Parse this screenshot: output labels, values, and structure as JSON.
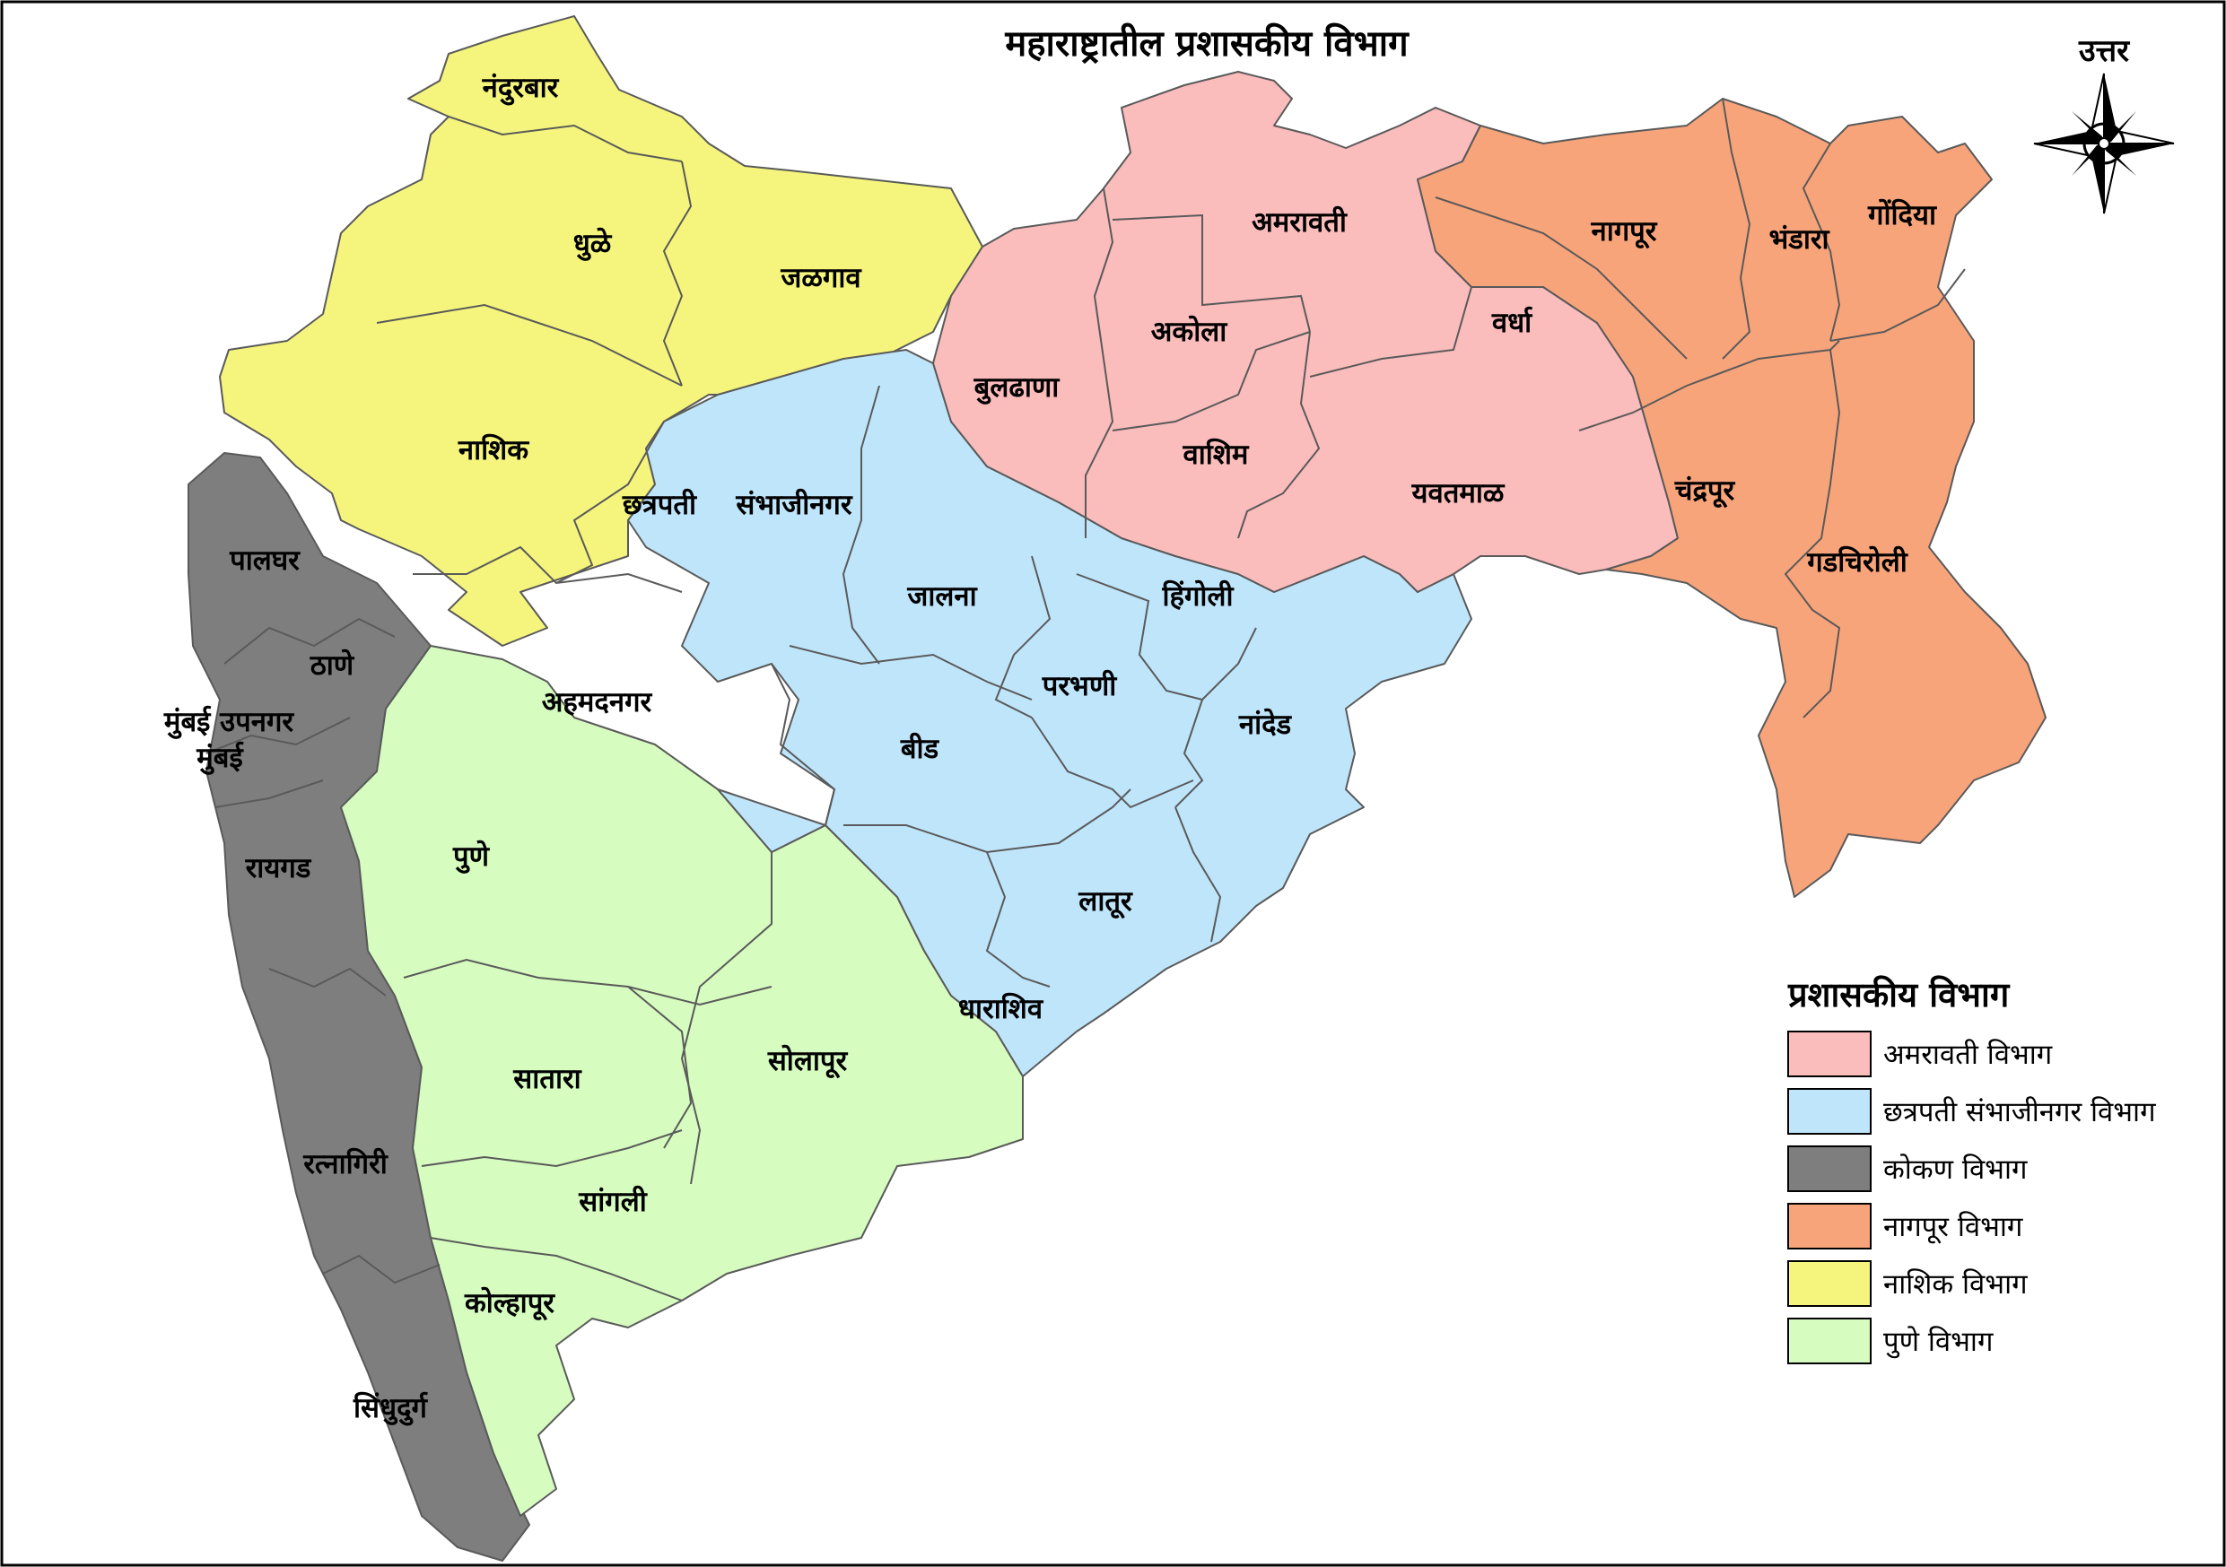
{
  "title": "महाराष्ट्रातील      प्रशासकीय    विभाग",
  "north_label": "उत्तर",
  "colors": {
    "amravati": "#fbbcbc",
    "sambhajinagar": "#bfe5fb",
    "konkan": "#7e7e7e",
    "nagpur": "#f8a47b",
    "nashik": "#f5f57e",
    "pune": "#d6fcc0"
  },
  "legend": {
    "title": "प्रशासकीय   विभाग",
    "items": [
      {
        "label": "अमरावती   विभाग",
        "color": "#fbbcbc"
      },
      {
        "label": "छत्रपती   संभाजीनगर   विभाग",
        "color": "#bfe5fb"
      },
      {
        "label": "कोकण   विभाग",
        "color": "#7e7e7e"
      },
      {
        "label": "नागपूर   विभाग",
        "color": "#f8a47b"
      },
      {
        "label": "नाशिक   विभाग",
        "color": "#f5f57e"
      },
      {
        "label": "पुणे   विभाग",
        "color": "#d6fcc0"
      }
    ]
  },
  "districts": {
    "nandurbar": "नंदुरबार",
    "dhule": "धुळे",
    "jalgaon": "जळगाव",
    "nashik": "नाशिक",
    "chhatrapati": "छत्रपती",
    "sambhajinagar": "संभाजीनगर",
    "ahmednagar": "अहमदनगर",
    "palghar": "पालघर",
    "thane": "ठाणे",
    "mumbai_suburban": "मुंबई  उपनगर",
    "mumbai": "मुंबई",
    "raigad": "रायगड",
    "ratnagiri": "रत्नागिरी",
    "sindhudurg": "सिंधुदुर्ग",
    "pune": "पुणे",
    "satara": "सातारा",
    "sangli": "सांगली",
    "kolhapur": "कोल्हापूर",
    "solapur": "सोलापूर",
    "buldhana": "बुलढाणा",
    "akola": "अकोला",
    "amravati": "अमरावती",
    "washim": "वाशिम",
    "yavatmal": "यवतमाळ",
    "jalna": "जालना",
    "hingoli": "हिंगोली",
    "parbhani": "परभणी",
    "beed": "बीड",
    "nanded": "नांदेड",
    "latur": "लातूर",
    "dharashiv": "धाराशिव",
    "wardha": "वर्धा",
    "nagpur": "नागपूर",
    "bhandara": "भंडारा",
    "gondia": "गोंदिया",
    "chandrapur": "चंद्रपूर",
    "gadchiroli": "गडचिरोली"
  }
}
